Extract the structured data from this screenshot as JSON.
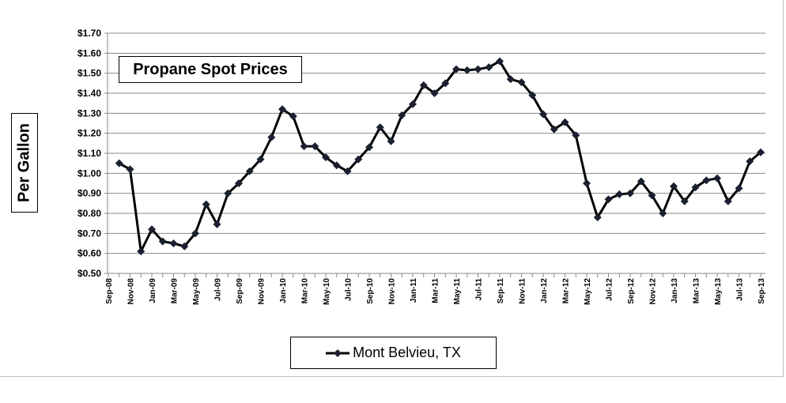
{
  "chart_data": {
    "type": "line",
    "title": "Propane Spot Prices",
    "xlabel": "",
    "ylabel": "Per Gallon",
    "ylim": [
      0.5,
      1.7
    ],
    "ytick_labels": [
      "$0.50",
      "$0.60",
      "$0.70",
      "$0.80",
      "$0.90",
      "$1.00",
      "$1.10",
      "$1.20",
      "$1.30",
      "$1.40",
      "$1.50",
      "$1.60",
      "$1.70"
    ],
    "grid": true,
    "legend_position": "bottom",
    "categories": [
      "Sep-08",
      "Oct-08",
      "Nov-08",
      "Dec-08",
      "Jan-09",
      "Feb-09",
      "Mar-09",
      "Apr-09",
      "May-09",
      "Jun-09",
      "Jul-09",
      "Aug-09",
      "Sep-09",
      "Oct-09",
      "Nov-09",
      "Dec-09",
      "Jan-10",
      "Feb-10",
      "Mar-10",
      "Apr-10",
      "May-10",
      "Jun-10",
      "Jul-10",
      "Aug-10",
      "Sep-10",
      "Oct-10",
      "Nov-10",
      "Dec-10",
      "Jan-11",
      "Feb-11",
      "Mar-11",
      "Apr-11",
      "May-11",
      "Jun-11",
      "Jul-11",
      "Aug-11",
      "Sep-11",
      "Oct-11",
      "Nov-11",
      "Dec-11",
      "Jan-12",
      "Feb-12",
      "Mar-12",
      "Apr-12",
      "May-12",
      "Jun-12",
      "Jul-12",
      "Aug-12",
      "Sep-12",
      "Oct-12",
      "Nov-12",
      "Dec-12",
      "Jan-13",
      "Feb-13",
      "Mar-13",
      "Apr-13",
      "May-13",
      "Jun-13",
      "Jul-13",
      "Aug-13",
      "Sep-13"
    ],
    "series": [
      {
        "name": "Mont Belvieu, TX",
        "color": "#000000",
        "values": [
          null,
          1.05,
          1.02,
          0.61,
          0.72,
          0.66,
          0.65,
          0.635,
          0.7,
          0.845,
          0.745,
          0.9,
          0.95,
          1.01,
          1.07,
          1.18,
          1.32,
          1.285,
          1.135,
          1.135,
          1.08,
          1.04,
          1.01,
          1.07,
          1.13,
          1.23,
          1.16,
          1.29,
          1.345,
          1.44,
          1.4,
          1.45,
          1.52,
          1.515,
          1.52,
          1.53,
          1.56,
          1.47,
          1.455,
          1.39,
          1.295,
          1.22,
          1.255,
          1.19,
          0.95,
          0.78,
          0.87,
          0.895,
          0.9,
          0.96,
          0.89,
          0.8,
          0.935,
          0.86,
          0.93,
          0.965,
          0.975,
          0.86,
          0.925,
          1.06,
          1.105
        ]
      }
    ]
  }
}
